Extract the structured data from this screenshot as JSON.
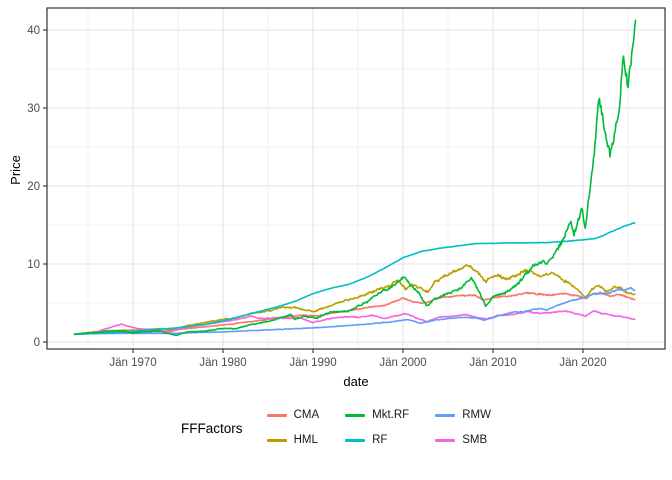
{
  "chart_data": {
    "type": "line",
    "title": "",
    "xlabel": "date",
    "ylabel": "Price",
    "legend_title": "FFFactors",
    "legend_position": "bottom",
    "grid": "on",
    "panel_border": true,
    "x_axis": {
      "ticks": [
        {
          "label": "Jän 1970",
          "year": 1970
        },
        {
          "label": "Jän 1980",
          "year": 1980
        },
        {
          "label": "Jän 1990",
          "year": 1990
        },
        {
          "label": "Jän 2000",
          "year": 2000
        },
        {
          "label": "Jän 2010",
          "year": 2010
        },
        {
          "label": "Jän 2020",
          "year": 2020
        }
      ],
      "minor_years": [
        1965,
        1975,
        1985,
        1995,
        2005,
        2015,
        2025
      ],
      "range_years": [
        1963.5,
        2025.85
      ]
    },
    "y_axis": {
      "ticks": [
        {
          "label": "0",
          "value": 0
        },
        {
          "label": "10",
          "value": 10
        },
        {
          "label": "20",
          "value": 20
        },
        {
          "label": "30",
          "value": 30
        },
        {
          "label": "40",
          "value": 40
        }
      ],
      "minor_values": [
        5,
        15,
        25,
        35
      ],
      "range": [
        0,
        40.3
      ]
    },
    "draw_order": [
      "CMA",
      "HML",
      "SMB",
      "RMW",
      "RF",
      "Mkt.RF"
    ],
    "series": [
      {
        "name": "CMA",
        "color": "#F8766D",
        "wiggle": 0.02,
        "points": [
          [
            1963.5,
            1.0
          ],
          [
            1965,
            1.1
          ],
          [
            1967,
            1.2
          ],
          [
            1969,
            1.25
          ],
          [
            1971,
            1.3
          ],
          [
            1973,
            1.35
          ],
          [
            1975,
            1.6
          ],
          [
            1977,
            1.85
          ],
          [
            1979,
            2.05
          ],
          [
            1981,
            2.3
          ],
          [
            1983,
            2.6
          ],
          [
            1985,
            2.9
          ],
          [
            1987,
            3.2
          ],
          [
            1989,
            3.45
          ],
          [
            1990.5,
            3.35
          ],
          [
            1992,
            3.7
          ],
          [
            1994,
            4.0
          ],
          [
            1996,
            4.4
          ],
          [
            1998,
            4.7
          ],
          [
            2000,
            5.6
          ],
          [
            2001,
            5.2
          ],
          [
            2002.5,
            5.0
          ],
          [
            2004,
            5.7
          ],
          [
            2006,
            5.9
          ],
          [
            2008,
            6.0
          ],
          [
            2009,
            5.4
          ],
          [
            2010,
            5.7
          ],
          [
            2012,
            5.9
          ],
          [
            2014,
            6.3
          ],
          [
            2016,
            6.0
          ],
          [
            2018,
            6.2
          ],
          [
            2019.5,
            5.9
          ],
          [
            2020.3,
            5.5
          ],
          [
            2021,
            6.1
          ],
          [
            2022,
            6.3
          ],
          [
            2023,
            5.8
          ],
          [
            2024,
            6.1
          ],
          [
            2025,
            5.7
          ],
          [
            2025.8,
            5.4
          ]
        ]
      },
      {
        "name": "HML",
        "color": "#B79F00",
        "wiggle": 0.03,
        "points": [
          [
            1963.5,
            1.0
          ],
          [
            1965,
            1.2
          ],
          [
            1967,
            1.45
          ],
          [
            1969,
            1.5
          ],
          [
            1971,
            1.55
          ],
          [
            1973,
            1.7
          ],
          [
            1974.5,
            1.6
          ],
          [
            1976,
            2.1
          ],
          [
            1978,
            2.5
          ],
          [
            1980,
            2.9
          ],
          [
            1981.5,
            3.1
          ],
          [
            1983,
            3.6
          ],
          [
            1985,
            4.0
          ],
          [
            1986.5,
            4.4
          ],
          [
            1988,
            4.4
          ],
          [
            1990,
            3.9
          ],
          [
            1991,
            4.3
          ],
          [
            1993,
            5.2
          ],
          [
            1995,
            5.7
          ],
          [
            1997,
            6.6
          ],
          [
            1998.5,
            7.2
          ],
          [
            1999.5,
            7.9
          ],
          [
            2000.3,
            6.8
          ],
          [
            2001,
            7.3
          ],
          [
            2002,
            6.9
          ],
          [
            2002.8,
            6.4
          ],
          [
            2003.5,
            7.6
          ],
          [
            2004.5,
            8.5
          ],
          [
            2006,
            9.2
          ],
          [
            2007.2,
            10.0
          ],
          [
            2008,
            9.2
          ],
          [
            2009.2,
            7.8
          ],
          [
            2010.5,
            8.6
          ],
          [
            2011.5,
            8.1
          ],
          [
            2013,
            8.8
          ],
          [
            2014,
            9.2
          ],
          [
            2015,
            8.4
          ],
          [
            2016.5,
            8.8
          ],
          [
            2018,
            7.8
          ],
          [
            2019,
            7.2
          ],
          [
            2020.3,
            5.6
          ],
          [
            2021,
            6.8
          ],
          [
            2021.8,
            7.3
          ],
          [
            2022.7,
            6.4
          ],
          [
            2023.5,
            7.0
          ],
          [
            2024.3,
            6.9
          ],
          [
            2025,
            6.2
          ],
          [
            2025.8,
            6.2
          ]
        ]
      },
      {
        "name": "Mkt.RF",
        "color": "#00BA38",
        "wiggle": 0.035,
        "points": [
          [
            1963.5,
            1.0
          ],
          [
            1965,
            1.15
          ],
          [
            1966,
            1.2
          ],
          [
            1967,
            1.35
          ],
          [
            1968.8,
            1.4
          ],
          [
            1970,
            1.15
          ],
          [
            1971,
            1.3
          ],
          [
            1972.8,
            1.45
          ],
          [
            1974.8,
            0.85
          ],
          [
            1976,
            1.3
          ],
          [
            1978,
            1.4
          ],
          [
            1980,
            1.75
          ],
          [
            1981.5,
            1.7
          ],
          [
            1983,
            2.2
          ],
          [
            1985,
            2.6
          ],
          [
            1987.6,
            3.5
          ],
          [
            1988,
            2.9
          ],
          [
            1989,
            3.3
          ],
          [
            1990.5,
            3.1
          ],
          [
            1992,
            3.8
          ],
          [
            1994,
            4.0
          ],
          [
            1996,
            5.1
          ],
          [
            1997,
            6.0
          ],
          [
            1998.5,
            6.9
          ],
          [
            1999,
            7.4
          ],
          [
            2000.2,
            8.3
          ],
          [
            2001,
            7.0
          ],
          [
            2001.8,
            6.2
          ],
          [
            2002.7,
            4.6
          ],
          [
            2003.5,
            5.5
          ],
          [
            2004.5,
            6.0
          ],
          [
            2006,
            6.6
          ],
          [
            2007.6,
            8.2
          ],
          [
            2008.6,
            6.2
          ],
          [
            2009.2,
            4.5
          ],
          [
            2010,
            5.8
          ],
          [
            2011.5,
            6.3
          ],
          [
            2012.5,
            7.2
          ],
          [
            2013.5,
            8.6
          ],
          [
            2014.5,
            9.8
          ],
          [
            2015.5,
            10.2
          ],
          [
            2016,
            10.0
          ],
          [
            2016.8,
            11.2
          ],
          [
            2017.8,
            13.2
          ],
          [
            2018.7,
            15.2
          ],
          [
            2019,
            13.8
          ],
          [
            2019.9,
            17.2
          ],
          [
            2020.25,
            14.5
          ],
          [
            2020.6,
            18.0
          ],
          [
            2021,
            21.5
          ],
          [
            2021.4,
            26.0
          ],
          [
            2021.8,
            31.5
          ],
          [
            2022.4,
            27.5
          ],
          [
            2023,
            24.2
          ],
          [
            2023.6,
            27.0
          ],
          [
            2024.1,
            30.5
          ],
          [
            2024.45,
            37.0
          ],
          [
            2024.8,
            34.5
          ],
          [
            2025,
            33.0
          ],
          [
            2025.3,
            36.0
          ],
          [
            2025.6,
            38.5
          ],
          [
            2025.85,
            40.3
          ]
        ]
      },
      {
        "name": "RF",
        "color": "#00BFC4",
        "wiggle": 0.003,
        "points": [
          [
            1963.5,
            1.0
          ],
          [
            1966,
            1.12
          ],
          [
            1968,
            1.22
          ],
          [
            1970,
            1.38
          ],
          [
            1972,
            1.55
          ],
          [
            1974,
            1.72
          ],
          [
            1976,
            1.95
          ],
          [
            1978,
            2.25
          ],
          [
            1980,
            2.7
          ],
          [
            1982,
            3.3
          ],
          [
            1984,
            3.9
          ],
          [
            1986,
            4.5
          ],
          [
            1988,
            5.2
          ],
          [
            1990,
            6.2
          ],
          [
            1992,
            6.9
          ],
          [
            1994,
            7.4
          ],
          [
            1996,
            8.3
          ],
          [
            1998,
            9.5
          ],
          [
            2000,
            10.8
          ],
          [
            2002,
            11.6
          ],
          [
            2004,
            12.0
          ],
          [
            2006,
            12.3
          ],
          [
            2008,
            12.6
          ],
          [
            2010,
            12.65
          ],
          [
            2012,
            12.7
          ],
          [
            2014,
            12.72
          ],
          [
            2016,
            12.75
          ],
          [
            2018,
            12.9
          ],
          [
            2020,
            13.1
          ],
          [
            2021.5,
            13.3
          ],
          [
            2022.5,
            13.8
          ],
          [
            2023.5,
            14.3
          ],
          [
            2024.5,
            14.8
          ],
          [
            2025.8,
            15.3
          ]
        ]
      },
      {
        "name": "RMW",
        "color": "#619CFF",
        "wiggle": 0.02,
        "points": [
          [
            1963.5,
            1.0
          ],
          [
            1965,
            1.05
          ],
          [
            1968,
            1.1
          ],
          [
            1971,
            1.12
          ],
          [
            1974,
            1.1
          ],
          [
            1977,
            1.2
          ],
          [
            1980,
            1.3
          ],
          [
            1983,
            1.45
          ],
          [
            1986,
            1.6
          ],
          [
            1989,
            1.75
          ],
          [
            1992,
            1.95
          ],
          [
            1995,
            2.2
          ],
          [
            1997,
            2.4
          ],
          [
            1999,
            2.6
          ],
          [
            2000.5,
            2.9
          ],
          [
            2002,
            2.4
          ],
          [
            2003.5,
            2.8
          ],
          [
            2005,
            3.0
          ],
          [
            2007,
            3.2
          ],
          [
            2008.5,
            3.0
          ],
          [
            2009,
            2.8
          ],
          [
            2010.5,
            3.3
          ],
          [
            2012,
            3.8
          ],
          [
            2013.5,
            3.9
          ],
          [
            2015,
            4.3
          ],
          [
            2016,
            4.1
          ],
          [
            2017,
            4.6
          ],
          [
            2018,
            5.0
          ],
          [
            2019,
            5.4
          ],
          [
            2020,
            5.6
          ],
          [
            2021,
            6.1
          ],
          [
            2022,
            6.2
          ],
          [
            2023,
            6.3
          ],
          [
            2024,
            6.8
          ],
          [
            2024.6,
            6.5
          ],
          [
            2025.2,
            6.9
          ],
          [
            2025.8,
            6.6
          ]
        ]
      },
      {
        "name": "SMB",
        "color": "#F564E3",
        "wiggle": 0.025,
        "points": [
          [
            1963.5,
            1.0
          ],
          [
            1965,
            1.15
          ],
          [
            1966,
            1.3
          ],
          [
            1967,
            1.7
          ],
          [
            1968.7,
            2.3
          ],
          [
            1969.5,
            2.0
          ],
          [
            1970.5,
            1.7
          ],
          [
            1972,
            1.6
          ],
          [
            1974,
            1.3
          ],
          [
            1975.5,
            1.7
          ],
          [
            1977,
            2.1
          ],
          [
            1978.5,
            2.3
          ],
          [
            1980,
            2.6
          ],
          [
            1981.5,
            2.9
          ],
          [
            1983,
            3.3
          ],
          [
            1984.5,
            3.0
          ],
          [
            1986,
            3.1
          ],
          [
            1987.5,
            3.0
          ],
          [
            1988.5,
            3.1
          ],
          [
            1990,
            2.5
          ],
          [
            1991.5,
            2.9
          ],
          [
            1993,
            3.2
          ],
          [
            1995,
            3.2
          ],
          [
            1996.5,
            3.4
          ],
          [
            1998,
            3.0
          ],
          [
            1999,
            3.3
          ],
          [
            2000.3,
            3.6
          ],
          [
            2001.5,
            3.1
          ],
          [
            2002.7,
            2.6
          ],
          [
            2004,
            3.2
          ],
          [
            2005.5,
            3.3
          ],
          [
            2007,
            3.5
          ],
          [
            2008.5,
            3.1
          ],
          [
            2009.3,
            2.9
          ],
          [
            2010.5,
            3.4
          ],
          [
            2012,
            3.5
          ],
          [
            2013.8,
            3.9
          ],
          [
            2015,
            3.7
          ],
          [
            2016.5,
            3.8
          ],
          [
            2018,
            4.0
          ],
          [
            2019,
            3.7
          ],
          [
            2020.3,
            3.3
          ],
          [
            2021.2,
            4.0
          ],
          [
            2022.3,
            3.6
          ],
          [
            2023.3,
            3.4
          ],
          [
            2024.2,
            3.3
          ],
          [
            2025,
            3.1
          ],
          [
            2025.8,
            2.9
          ]
        ]
      }
    ]
  },
  "legend": {
    "title": "FFFactors",
    "items": [
      {
        "label": "CMA",
        "color": "#F8766D"
      },
      {
        "label": "HML",
        "color": "#B79F00"
      },
      {
        "label": "Mkt.RF",
        "color": "#00BA38"
      },
      {
        "label": "RF",
        "color": "#00BFC4"
      },
      {
        "label": "RMW",
        "color": "#619CFF"
      },
      {
        "label": "SMB",
        "color": "#F564E3"
      }
    ]
  },
  "colors": {
    "panel_border": "#333333",
    "grid_major": "#e2e2e2",
    "grid_minor": "#f0f0f0",
    "tick_text": "#4d4d4d"
  }
}
